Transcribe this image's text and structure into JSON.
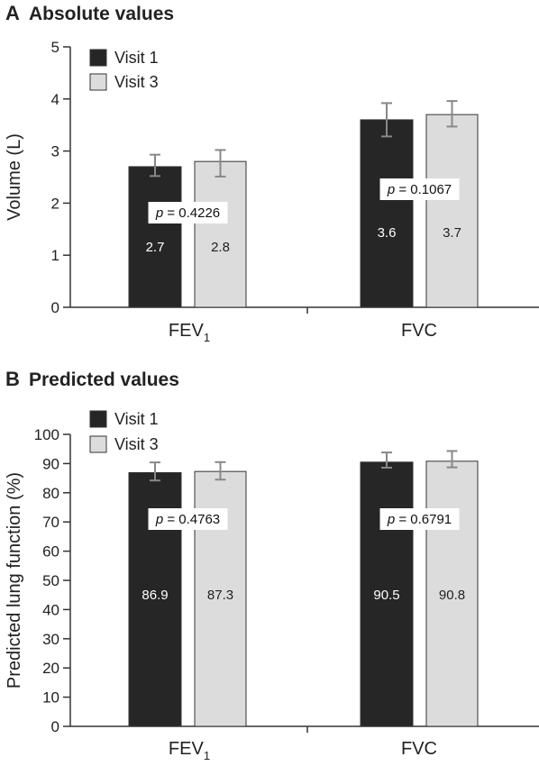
{
  "chart_data": [
    {
      "type": "bar",
      "panel_letter": "A",
      "title": "Absolute values",
      "ylabel": "Volume (L)",
      "xlabel": "",
      "ylim": [
        0,
        5
      ],
      "yticks": [
        "0",
        "1",
        "2",
        "3",
        "4",
        "5"
      ],
      "categories": [
        {
          "main": "FEV",
          "sub": "1"
        },
        {
          "main": "FVC",
          "sub": ""
        }
      ],
      "series": [
        {
          "name": "Visit 1",
          "color": "#262626",
          "values": [
            2.7,
            3.6
          ],
          "labels": [
            "2.7",
            "3.6"
          ],
          "err_low": [
            2.52,
            3.28
          ],
          "err_high": [
            2.93,
            3.92
          ]
        },
        {
          "name": "Visit 3",
          "color": "#dcdcdc",
          "values": [
            2.8,
            3.7
          ],
          "labels": [
            "2.8",
            "3.7"
          ],
          "err_low": [
            2.51,
            3.47
          ],
          "err_high": [
            3.02,
            3.96
          ]
        }
      ],
      "p_values": [
        {
          "text": "p",
          "value": " = 0.4226"
        },
        {
          "text": "p",
          "value": " = 0.1067"
        }
      ],
      "legend_position": "top-left",
      "grid": false
    },
    {
      "type": "bar",
      "panel_letter": "B",
      "title": "Predicted values",
      "ylabel": "Predicted lung function (%)",
      "xlabel": "",
      "ylim": [
        0,
        100
      ],
      "yticks": [
        "0",
        "10",
        "20",
        "30",
        "40",
        "50",
        "60",
        "70",
        "80",
        "90",
        "100"
      ],
      "categories": [
        {
          "main": "FEV",
          "sub": "1"
        },
        {
          "main": "FVC",
          "sub": ""
        }
      ],
      "series": [
        {
          "name": "Visit 1",
          "color": "#262626",
          "values": [
            86.9,
            90.5
          ],
          "labels": [
            "86.9",
            "90.5"
          ],
          "err_low": [
            84.2,
            88.6
          ],
          "err_high": [
            90.4,
            93.8
          ]
        },
        {
          "name": "Visit 3",
          "color": "#dcdcdc",
          "values": [
            87.3,
            90.8
          ],
          "labels": [
            "87.3",
            "90.8"
          ],
          "err_low": [
            84.5,
            88.7
          ],
          "err_high": [
            90.5,
            94.3
          ]
        }
      ],
      "p_values": [
        {
          "text": "p",
          "value": " = 0.4763"
        },
        {
          "text": "p",
          "value": " = 0.6791"
        }
      ],
      "legend_position": "top-left",
      "grid": false
    }
  ]
}
